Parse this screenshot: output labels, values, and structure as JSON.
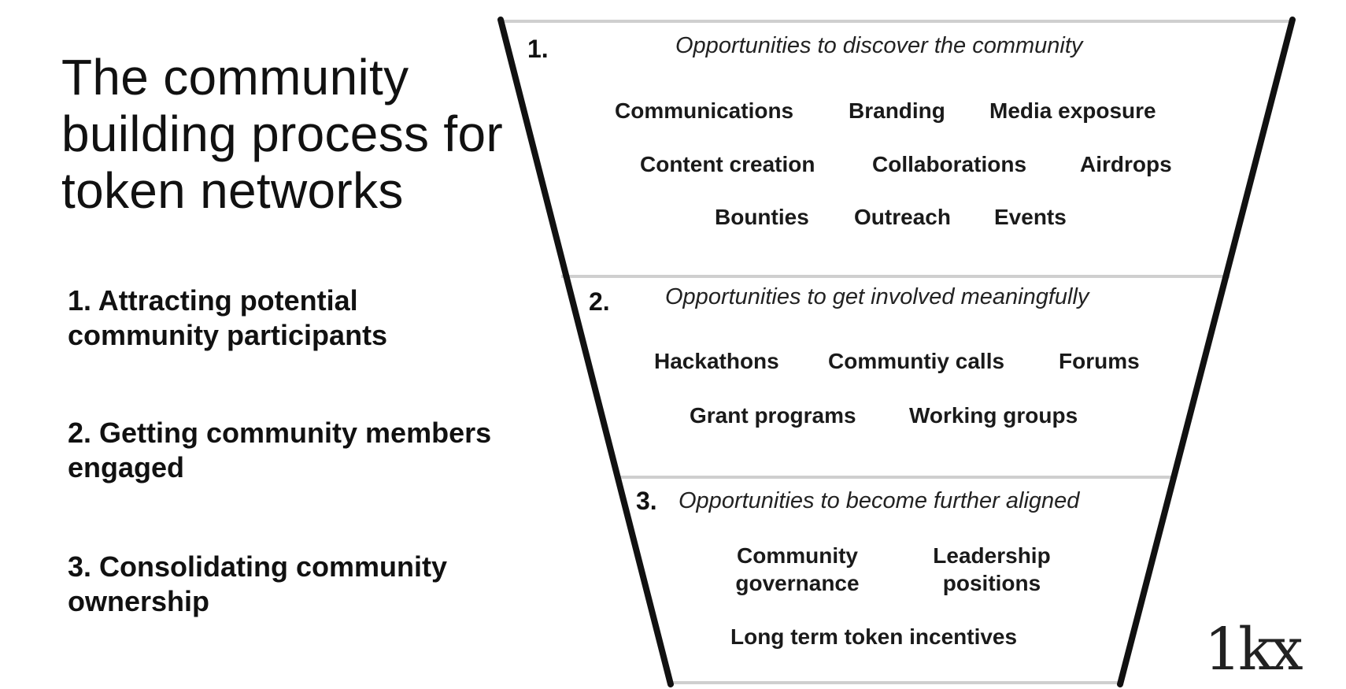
{
  "title": "The community building process for token networks",
  "stages": [
    "1. Attracting potential community participants",
    "2. Getting community members engaged",
    "3. Consolidating community ownership"
  ],
  "funnel": {
    "tiers": [
      {
        "number": "1.",
        "heading": "Opportunities to discover the community",
        "items": [
          "Communications",
          "Branding",
          "Media exposure",
          "Content creation",
          "Collaborations",
          "Airdrops",
          "Bounties",
          "Outreach",
          "Events"
        ]
      },
      {
        "number": "2.",
        "heading": "Opportunities to get involved meaningfully",
        "items": [
          "Hackathons",
          "Communtiy calls",
          "Forums",
          "Grant programs",
          "Working groups"
        ]
      },
      {
        "number": "3.",
        "heading": "Opportunities to become further aligned",
        "items": [
          "Community governance",
          "Leadership positions",
          "Long term token incentives"
        ]
      }
    ]
  },
  "logo": "1kx"
}
